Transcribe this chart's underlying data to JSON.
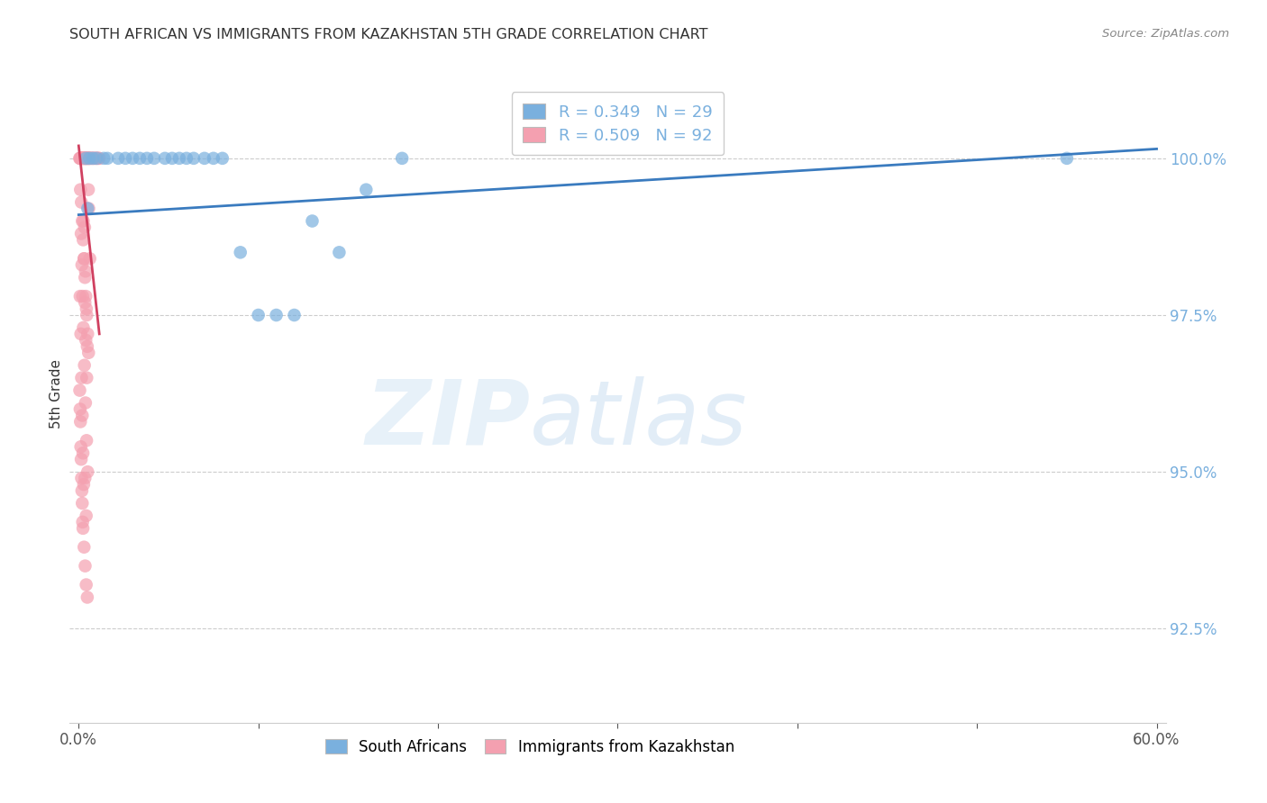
{
  "title": "SOUTH AFRICAN VS IMMIGRANTS FROM KAZAKHSTAN 5TH GRADE CORRELATION CHART",
  "source": "Source: ZipAtlas.com",
  "ylabel": "5th Grade",
  "blue_color": "#7ab0de",
  "pink_color": "#f4a0b0",
  "line_color": "#3a7bbf",
  "trendline_color": "#d04060",
  "background_color": "#ffffff",
  "xlim_min": 0.0,
  "xlim_max": 60.0,
  "ylim_min": 91.0,
  "ylim_max": 101.5,
  "yticks": [
    92.5,
    95.0,
    97.5,
    100.0
  ],
  "ytick_labels": [
    "92.5%",
    "95.0%",
    "97.5%",
    "100.0%"
  ],
  "sa_x": [
    0.4,
    0.6,
    0.8,
    1.0,
    1.4,
    1.6,
    2.2,
    2.6,
    3.0,
    3.4,
    3.8,
    4.2,
    4.8,
    5.2,
    5.6,
    6.0,
    6.4,
    7.0,
    7.5,
    8.0,
    9.0,
    10.0,
    11.0,
    12.0,
    13.0,
    14.5,
    16.0,
    18.0,
    55.0,
    0.5
  ],
  "sa_y": [
    100.0,
    100.0,
    100.0,
    100.0,
    100.0,
    100.0,
    100.0,
    100.0,
    100.0,
    100.0,
    100.0,
    100.0,
    100.0,
    100.0,
    100.0,
    100.0,
    100.0,
    100.0,
    100.0,
    100.0,
    98.5,
    97.5,
    97.5,
    97.5,
    99.0,
    98.5,
    99.5,
    100.0,
    100.0,
    99.2
  ],
  "kaz_x": [
    0.05,
    0.08,
    0.1,
    0.12,
    0.14,
    0.16,
    0.18,
    0.2,
    0.22,
    0.24,
    0.26,
    0.28,
    0.3,
    0.32,
    0.34,
    0.36,
    0.38,
    0.4,
    0.42,
    0.44,
    0.46,
    0.48,
    0.5,
    0.52,
    0.54,
    0.56,
    0.58,
    0.6,
    0.64,
    0.68,
    0.72,
    0.76,
    0.8,
    0.85,
    0.9,
    0.95,
    1.0,
    1.05,
    1.1,
    1.15,
    0.1,
    0.15,
    0.2,
    0.25,
    0.3,
    0.35,
    0.4,
    0.45,
    0.5,
    0.55,
    0.14,
    0.18,
    0.22,
    0.26,
    0.32,
    0.38,
    0.44,
    0.5,
    0.56,
    0.62,
    0.08,
    0.12,
    0.16,
    0.2,
    0.24,
    0.28,
    0.33,
    0.38,
    0.43,
    0.48,
    0.06,
    0.1,
    0.14,
    0.18,
    0.22,
    0.26,
    0.3,
    0.35,
    0.4,
    0.45,
    0.08,
    0.12,
    0.16,
    0.2,
    0.24,
    0.3,
    0.36,
    0.42,
    0.48,
    0.54,
    0.35,
    0.42
  ],
  "kaz_y": [
    100.0,
    100.0,
    100.0,
    100.0,
    100.0,
    100.0,
    100.0,
    100.0,
    100.0,
    100.0,
    100.0,
    100.0,
    100.0,
    100.0,
    100.0,
    100.0,
    100.0,
    100.0,
    100.0,
    100.0,
    100.0,
    100.0,
    100.0,
    100.0,
    100.0,
    100.0,
    100.0,
    100.0,
    100.0,
    100.0,
    100.0,
    100.0,
    100.0,
    100.0,
    100.0,
    100.0,
    100.0,
    100.0,
    100.0,
    100.0,
    99.5,
    99.3,
    99.0,
    98.7,
    98.4,
    98.1,
    97.8,
    97.5,
    97.2,
    96.9,
    98.8,
    98.3,
    97.8,
    97.3,
    96.7,
    96.1,
    95.5,
    95.0,
    99.2,
    98.4,
    97.8,
    97.2,
    96.5,
    95.9,
    95.3,
    94.8,
    98.9,
    98.2,
    97.6,
    97.0,
    96.3,
    95.8,
    95.2,
    94.7,
    94.2,
    99.0,
    98.4,
    97.7,
    97.1,
    96.5,
    96.0,
    95.4,
    94.9,
    94.5,
    94.1,
    93.8,
    93.5,
    93.2,
    93.0,
    99.5,
    94.9,
    94.3
  ],
  "sa_trendline_x": [
    0.0,
    60.0
  ],
  "sa_trendline_y": [
    99.1,
    100.15
  ],
  "kaz_trendline_x": [
    0.0,
    1.15
  ],
  "kaz_trendline_y": [
    100.2,
    97.2
  ]
}
